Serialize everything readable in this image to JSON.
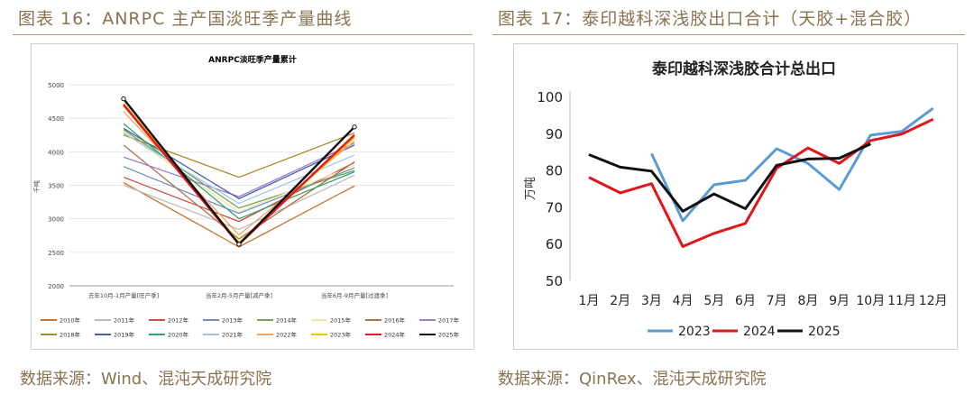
{
  "left": {
    "figure_title": "图表 16：ANRPC 主产国淡旺季产量曲线",
    "source": "数据来源：Wind、混沌天成研究院"
  },
  "right": {
    "figure_title": "图表 17：泰印越科深浅胶出口合计（天胶+混合胶）",
    "source": "数据来源：QinRex、混沌天成研究院"
  },
  "chart_data": [
    {
      "type": "line",
      "title": "ANRPC淡旺季产量累计",
      "xlabel": "",
      "ylabel": "千吨",
      "ylim": [
        2000,
        5000
      ],
      "yticks": [
        2000,
        2500,
        3000,
        3500,
        4000,
        4500,
        5000
      ],
      "categories": [
        "去年10月-1月产量[旺产季]",
        "当年2月-5月产量[减产季]",
        "当年6月-9月产量[过渡季]"
      ],
      "series": [
        {
          "name": "2010年",
          "color": "#c8722a",
          "values": [
            3540,
            2580,
            3490
          ]
        },
        {
          "name": "2011年",
          "color": "#bdbdbd",
          "values": [
            3500,
            2840,
            3650
          ]
        },
        {
          "name": "2012年",
          "color": "#d24a4a",
          "values": [
            3620,
            2960,
            3840
          ]
        },
        {
          "name": "2013年",
          "color": "#6d8fc9",
          "values": [
            3780,
            3080,
            3760
          ]
        },
        {
          "name": "2014年",
          "color": "#70a55a",
          "values": [
            4330,
            3160,
            3720
          ]
        },
        {
          "name": "2015年",
          "color": "#f2e3a0",
          "values": [
            4300,
            3100,
            3800
          ]
        },
        {
          "name": "2016年",
          "color": "#b2753f",
          "values": [
            4100,
            2700,
            3850
          ]
        },
        {
          "name": "2017年",
          "color": "#9a7fcf",
          "values": [
            3920,
            3330,
            4130
          ]
        },
        {
          "name": "2018年",
          "color": "#a9892a",
          "values": [
            4250,
            3620,
            4280
          ]
        },
        {
          "name": "2019年",
          "color": "#4a5fa5",
          "values": [
            4350,
            3300,
            4100
          ]
        },
        {
          "name": "2020年",
          "color": "#2fa36b",
          "values": [
            4420,
            3000,
            3700
          ]
        },
        {
          "name": "2021年",
          "color": "#9fc5e8",
          "values": [
            4280,
            3230,
            3950
          ]
        },
        {
          "name": "2022年",
          "color": "#f4a460",
          "values": [
            4600,
            2760,
            4160
          ]
        },
        {
          "name": "2023年",
          "color": "#f5c400",
          "values": [
            4720,
            2640,
            4220
          ]
        },
        {
          "name": "2024年",
          "color": "#e41a1c",
          "values": [
            4700,
            2620,
            4250
          ]
        },
        {
          "name": "2025年",
          "color": "#111111",
          "values": [
            4790,
            2620,
            4370
          ]
        }
      ]
    },
    {
      "type": "line",
      "title": "泰印越科深浅胶合计总出口",
      "xlabel": "",
      "ylabel": "万吨",
      "ylim": [
        50,
        100
      ],
      "yticks": [
        50,
        60,
        70,
        80,
        90,
        100
      ],
      "categories": [
        "1月",
        "2月",
        "3月",
        "4月",
        "5月",
        "6月",
        "7月",
        "8月",
        "9月",
        "10月",
        "11月",
        "12月"
      ],
      "series": [
        {
          "name": "2023",
          "color": "#5b9bd5",
          "values": [
            null,
            null,
            84.5,
            66.2,
            76.0,
            77.2,
            85.8,
            81.8,
            74.7,
            89.5,
            90.5,
            96.8
          ]
        },
        {
          "name": "2024",
          "color": "#e0161c",
          "values": [
            78.0,
            73.8,
            76.3,
            59.2,
            62.8,
            65.5,
            80.5,
            86.0,
            81.8,
            88.0,
            89.8,
            93.8
          ]
        },
        {
          "name": "2025",
          "color": "#111111",
          "values": [
            84.2,
            80.8,
            79.7,
            68.8,
            73.5,
            69.5,
            81.3,
            83.0,
            83.2,
            87.1,
            null,
            null
          ]
        }
      ]
    }
  ]
}
